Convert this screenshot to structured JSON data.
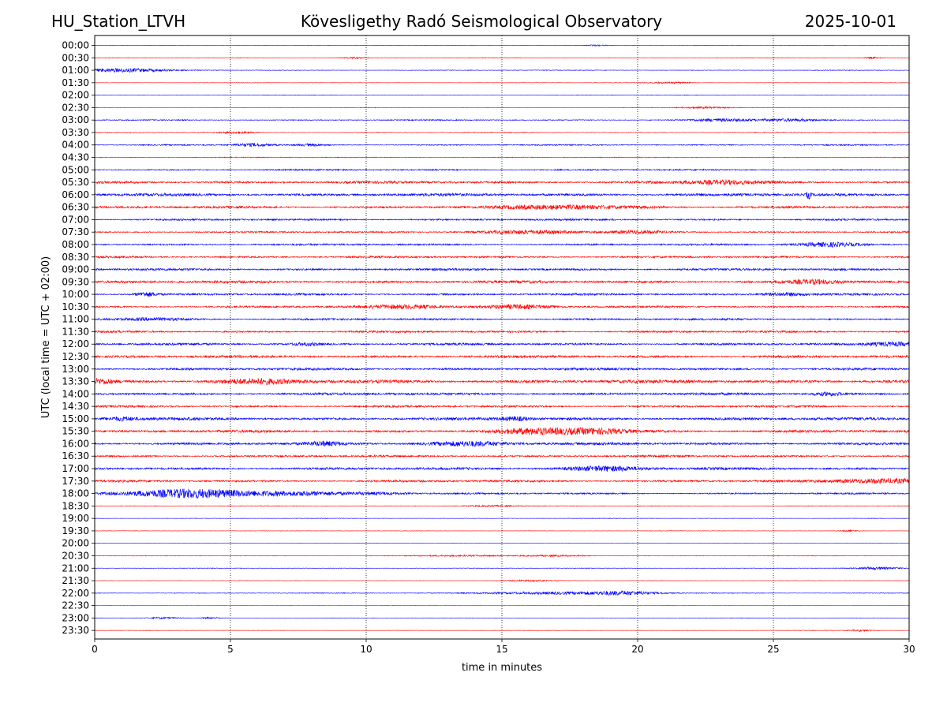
{
  "header": {
    "station": "HU_Station_LTVH",
    "observatory": "Kövesligethy Radó Seismological Observatory",
    "date": "2025-10-01"
  },
  "chart_data": {
    "type": "line",
    "title": "Kövesligethy Radó Seismological Observatory",
    "xlabel": "time in minutes",
    "ylabel": "UTC (local time = UTC + 02:00)",
    "xlim": [
      0,
      30
    ],
    "xticks": [
      0,
      5,
      10,
      15,
      20,
      25,
      30
    ],
    "xtick_labels": [
      "0",
      "5",
      "10",
      "15",
      "20",
      "25",
      "30"
    ],
    "grid": "vertical dotted lines at x = 5, 10, 15, 20, 25",
    "colors": {
      "even_rows": "#0000ff",
      "odd_rows": "#ff0000",
      "grid": "#000000"
    },
    "row_labels": [
      "00:00",
      "00:30",
      "01:00",
      "01:30",
      "02:00",
      "02:30",
      "03:00",
      "03:30",
      "04:00",
      "04:30",
      "05:00",
      "05:30",
      "06:00",
      "06:30",
      "07:00",
      "07:30",
      "08:00",
      "08:30",
      "09:00",
      "09:30",
      "10:00",
      "10:30",
      "11:00",
      "11:30",
      "12:00",
      "12:30",
      "13:00",
      "13:30",
      "14:00",
      "14:30",
      "15:00",
      "15:30",
      "16:00",
      "16:30",
      "17:00",
      "17:30",
      "18:00",
      "18:30",
      "19:00",
      "19:30",
      "20:00",
      "20:30",
      "21:00",
      "21:30",
      "22:00",
      "22:30",
      "23:00",
      "23:30"
    ],
    "noise_level": [
      0.15,
      0.25,
      0.3,
      0.2,
      0.25,
      0.25,
      0.5,
      0.35,
      0.6,
      0.4,
      0.7,
      1.2,
      1.4,
      1.1,
      0.9,
      0.8,
      0.9,
      1.0,
      1.1,
      1.3,
      1.0,
      0.9,
      0.9,
      1.0,
      1.1,
      1.2,
      1.2,
      1.6,
      1.2,
      1.0,
      1.4,
      1.3,
      1.3,
      1.0,
      1.2,
      1.1,
      0.8,
      0.3,
      0.25,
      0.2,
      0.15,
      0.3,
      0.25,
      0.2,
      0.35,
      0.2,
      0.2,
      0.2
    ],
    "events": [
      {
        "row": 0,
        "t": 18.5,
        "amp": 0.8,
        "dur": 0.4
      },
      {
        "row": 1,
        "t": 9.5,
        "amp": 1.0,
        "dur": 0.4
      },
      {
        "row": 1,
        "t": 28.6,
        "amp": 1.0,
        "dur": 0.3
      },
      {
        "row": 2,
        "t": 1.0,
        "amp": 2.4,
        "dur": 1.6
      },
      {
        "row": 3,
        "t": 21.2,
        "amp": 1.0,
        "dur": 0.8
      },
      {
        "row": 5,
        "t": 22.5,
        "amp": 1.0,
        "dur": 1.0
      },
      {
        "row": 6,
        "t": 23.0,
        "amp": 1.5,
        "dur": 1.2
      },
      {
        "row": 6,
        "t": 25.5,
        "amp": 1.5,
        "dur": 1.2
      },
      {
        "row": 7,
        "t": 5.2,
        "amp": 1.2,
        "dur": 0.6
      },
      {
        "row": 8,
        "t": 5.8,
        "amp": 1.8,
        "dur": 0.7
      },
      {
        "row": 8,
        "t": 8.0,
        "amp": 1.2,
        "dur": 0.5
      },
      {
        "row": 11,
        "t": 23.0,
        "amp": 2.0,
        "dur": 1.5
      },
      {
        "row": 12,
        "t": 26.3,
        "amp": 4.5,
        "dur": 0.08
      },
      {
        "row": 13,
        "t": 17.5,
        "amp": 2.2,
        "dur": 2.5
      },
      {
        "row": 15,
        "t": 16.0,
        "amp": 2.0,
        "dur": 2.0
      },
      {
        "row": 15,
        "t": 20.0,
        "amp": 1.5,
        "dur": 1.0
      },
      {
        "row": 16,
        "t": 27.0,
        "amp": 2.5,
        "dur": 1.2
      },
      {
        "row": 19,
        "t": 26.5,
        "amp": 2.0,
        "dur": 1.0
      },
      {
        "row": 20,
        "t": 1.9,
        "amp": 2.6,
        "dur": 0.4
      },
      {
        "row": 20,
        "t": 25.5,
        "amp": 2.0,
        "dur": 1.0
      },
      {
        "row": 21,
        "t": 11.5,
        "amp": 2.2,
        "dur": 1.6
      },
      {
        "row": 21,
        "t": 15.5,
        "amp": 2.2,
        "dur": 1.4
      },
      {
        "row": 22,
        "t": 2.0,
        "amp": 1.5,
        "dur": 1.5
      },
      {
        "row": 24,
        "t": 7.8,
        "amp": 1.5,
        "dur": 0.6
      },
      {
        "row": 24,
        "t": 29.5,
        "amp": 2.2,
        "dur": 1.0
      },
      {
        "row": 27,
        "t": 0.2,
        "amp": 2.6,
        "dur": 0.5
      },
      {
        "row": 27,
        "t": 6.0,
        "amp": 2.4,
        "dur": 1.5
      },
      {
        "row": 28,
        "t": 27.0,
        "amp": 2.0,
        "dur": 0.6
      },
      {
        "row": 30,
        "t": 1.0,
        "amp": 2.0,
        "dur": 0.6
      },
      {
        "row": 30,
        "t": 15.5,
        "amp": 2.0,
        "dur": 0.5
      },
      {
        "row": 31,
        "t": 16.3,
        "amp": 3.0,
        "dur": 1.5
      },
      {
        "row": 31,
        "t": 18.5,
        "amp": 3.0,
        "dur": 1.2
      },
      {
        "row": 32,
        "t": 8.5,
        "amp": 2.0,
        "dur": 0.6
      },
      {
        "row": 32,
        "t": 13.8,
        "amp": 2.6,
        "dur": 1.5
      },
      {
        "row": 34,
        "t": 18.8,
        "amp": 2.6,
        "dur": 1.5
      },
      {
        "row": 35,
        "t": 29.0,
        "amp": 2.6,
        "dur": 1.8
      },
      {
        "row": 36,
        "t": 3.5,
        "amp": 5.0,
        "dur": 2.5
      },
      {
        "row": 36,
        "t": 7.5,
        "amp": 2.2,
        "dur": 2.0
      },
      {
        "row": 36,
        "t": 10.5,
        "amp": 1.5,
        "dur": 1.0
      },
      {
        "row": 37,
        "t": 14.5,
        "amp": 0.8,
        "dur": 1.0
      },
      {
        "row": 39,
        "t": 27.8,
        "amp": 0.9,
        "dur": 0.4
      },
      {
        "row": 41,
        "t": 13.5,
        "amp": 0.8,
        "dur": 1.5
      },
      {
        "row": 41,
        "t": 17.0,
        "amp": 0.8,
        "dur": 1.2
      },
      {
        "row": 42,
        "t": 28.8,
        "amp": 1.5,
        "dur": 0.8
      },
      {
        "row": 43,
        "t": 16.0,
        "amp": 0.8,
        "dur": 1.0
      },
      {
        "row": 44,
        "t": 17.0,
        "amp": 1.5,
        "dur": 3.0
      },
      {
        "row": 44,
        "t": 19.5,
        "amp": 1.8,
        "dur": 1.2
      },
      {
        "row": 46,
        "t": 2.5,
        "amp": 1.0,
        "dur": 0.6
      },
      {
        "row": 46,
        "t": 4.3,
        "amp": 1.0,
        "dur": 0.4
      },
      {
        "row": 47,
        "t": 28.2,
        "amp": 1.0,
        "dur": 0.5
      }
    ]
  }
}
